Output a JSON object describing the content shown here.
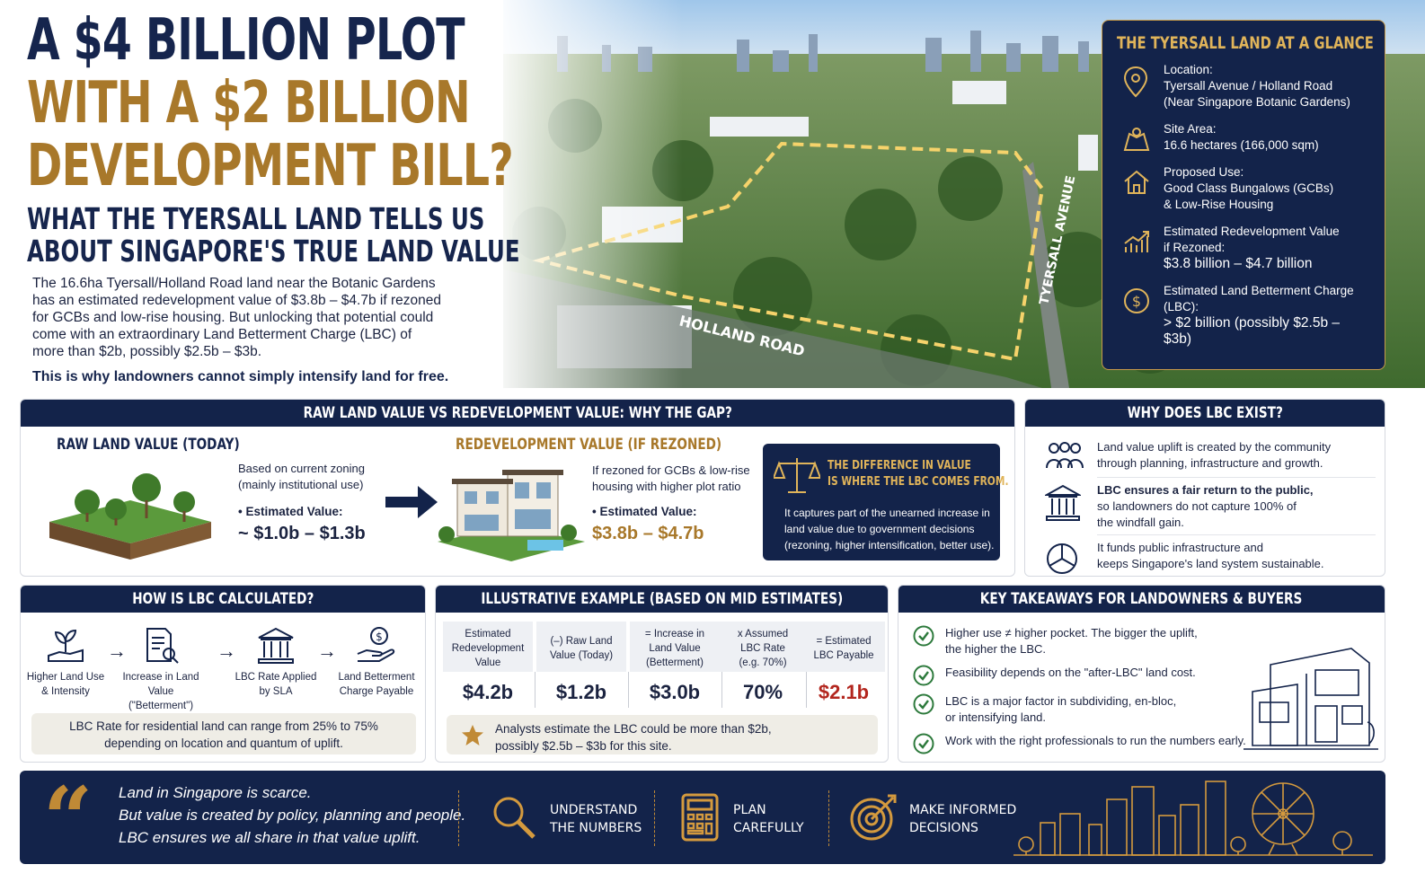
{
  "headline": {
    "line1": "A $4 BILLION PLOT",
    "line2": "WITH A $2 BILLION",
    "line3": "DEVELOPMENT BILL?",
    "sub1": "WHAT THE TYERSALL LAND TELLS US",
    "sub2": "ABOUT SINGAPORE'S TRUE LAND VALUE",
    "intro": "The 16.6ha Tyersall/Holland Road land near the Botanic Gardens has an estimated redevelopment value of $3.8b – $4.7b if rezoned for GCBs and low-rise housing. But unlocking that potential could come with an extraordinary Land Betterment Charge (LBC) of more than $2b, possibly $2.5b – $3b.",
    "intro_strong": "This is why landowners cannot simply intensify land for free."
  },
  "map_labels": {
    "road1": "HOLLAND ROAD",
    "road2": "TYERSALL AVENUE"
  },
  "glance": {
    "title": "THE TYERSALL LAND AT A GLANCE",
    "items": [
      {
        "icon": "location-pin-icon",
        "label": "Location:",
        "value1": "Tyersall Avenue / Holland Road",
        "value2": "(Near Singapore Botanic Gardens)"
      },
      {
        "icon": "map-area-icon",
        "label": "Site Area:",
        "value1": "16.6 hectares (166,000 sqm)"
      },
      {
        "icon": "house-icon",
        "label": "Proposed Use:",
        "value1": "Good Class Bungalows (GCBs)",
        "value2": "& Low-Rise Housing"
      },
      {
        "icon": "growth-chart-icon",
        "label": "Estimated Redevelopment Value",
        "label2": "if Rezoned:",
        "value1": "$3.8 billion – $4.7 billion"
      },
      {
        "icon": "dollar-coin-icon",
        "label": "Estimated Land Betterment Charge",
        "label2": "(LBC):",
        "value1": "> $2 billion (possibly $2.5b – $3b)"
      }
    ]
  },
  "gap": {
    "title": "RAW LAND VALUE VS REDEVELOPMENT VALUE: WHY THE GAP?",
    "raw_title": "RAW LAND VALUE (TODAY)",
    "raw_desc1": "Based on current zoning",
    "raw_desc2": "(mainly institutional use)",
    "raw_est_label": "• Estimated Value:",
    "raw_est_value": "~ $1.0b – $1.3b",
    "redev_title": "REDEVELOPMENT VALUE (IF REZONED)",
    "redev_desc1": "If rezoned for GCBs & low-rise",
    "redev_desc2": "housing with higher plot ratio",
    "redev_est_label": "• Estimated Value:",
    "redev_est_value": "$3.8b – $4.7b",
    "diff_title1": "THE DIFFERENCE IN VALUE",
    "diff_title2": "IS WHERE THE LBC COMES FROM.",
    "diff_body": "It captures part of the unearned increase in land value due to government decisions (rezoning, higher intensification, better use)."
  },
  "why_lbc": {
    "title": "WHY DOES LBC EXIST?",
    "rows": [
      {
        "icon": "community-icon",
        "text1": "Land value uplift is created by the community",
        "text2": "through planning, infrastructure and growth."
      },
      {
        "icon": "government-building-icon",
        "text1": "LBC ensures a fair return to the public,",
        "text2": "so landowners do not capture 100% of",
        "text3": "the windfall gain."
      },
      {
        "icon": "pie-chart-icon",
        "text1": "It funds public infrastructure and",
        "text2": "keeps Singapore's land system sustainable."
      }
    ]
  },
  "calc": {
    "title": "HOW IS LBC CALCULATED?",
    "steps": [
      {
        "icon": "plant-hand-icon",
        "l1": "Higher Land Use",
        "l2": "& Intensity"
      },
      {
        "icon": "document-magnifier-icon",
        "l1": "Increase in Land Value",
        "l2": "(\"Betterment\")"
      },
      {
        "icon": "government-building-icon",
        "l1": "LBC Rate Applied",
        "l2": "by SLA"
      },
      {
        "icon": "hand-coin-icon",
        "l1": "Land Betterment",
        "l2": "Charge Payable"
      }
    ],
    "arrow": "→",
    "note1": "LBC Rate for residential land can range from 25% to 75%",
    "note2": "depending on location and quantum of uplift."
  },
  "example": {
    "title": "ILLUSTRATIVE EXAMPLE (BASED ON MID ESTIMATES)",
    "cols": [
      {
        "h1": "Estimated",
        "h2": "Redevelopment",
        "h3": "Value",
        "value": "$4.2b"
      },
      {
        "h1": "(–) Raw Land",
        "h2": "Value (Today)",
        "h3": "",
        "value": "$1.2b"
      },
      {
        "h1": "= Increase in",
        "h2": "Land Value",
        "h3": "(Betterment)",
        "value": "$3.0b"
      },
      {
        "h1": "x Assumed",
        "h2": "LBC Rate",
        "h3": "(e.g. 70%)",
        "value": "70%"
      },
      {
        "h1": "= Estimated",
        "h2": "LBC Payable",
        "h3": "",
        "value": "$2.1b"
      }
    ],
    "note1": "Analysts estimate the LBC could be more than $2b,",
    "note2": "possibly $2.5b – $3b for this site."
  },
  "takeaways": {
    "title": "KEY TAKEAWAYS FOR LANDOWNERS & BUYERS",
    "items": [
      {
        "t1": "Higher use ≠ higher pocket. The bigger the uplift,",
        "t2": "the higher the LBC."
      },
      {
        "t1": "Feasibility depends on the \"after-LBC\" land cost.",
        "t2": ""
      },
      {
        "t1": "LBC is a major factor in subdividing, en-bloc,",
        "t2": "or intensifying land."
      },
      {
        "t1": "Work with the right professionals to run the numbers early.",
        "t2": ""
      }
    ]
  },
  "footer": {
    "quote_mark": "“",
    "q1": "Land in Singapore is scarce.",
    "q2": "But value is created by policy, planning and people.",
    "q3": "LBC ensures we all share in that value uplift.",
    "items": [
      {
        "icon": "magnifier-icon",
        "l1": "UNDERSTAND",
        "l2": "THE NUMBERS"
      },
      {
        "icon": "calculator-icon",
        "l1": "PLAN",
        "l2": "CAREFULLY"
      },
      {
        "icon": "target-icon",
        "l1": "MAKE INFORMED",
        "l2": "DECISIONS"
      }
    ]
  },
  "colors": {
    "navy": "#13234a",
    "gold": "#a8782a",
    "gold_light": "#e0b45a",
    "red": "#b3261e"
  }
}
